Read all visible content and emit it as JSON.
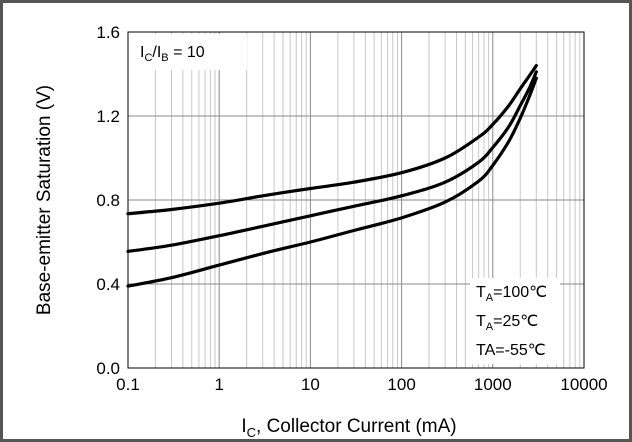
{
  "chart_data": {
    "type": "line",
    "x_scale": "log",
    "xlim": [
      0.1,
      10000
    ],
    "ylim": [
      0.0,
      1.6
    ],
    "grid": true,
    "x_ticks": [
      "0.1",
      "1",
      "10",
      "100",
      "1000",
      "10000"
    ],
    "y_ticks": [
      "0.0",
      "0.4",
      "0.8",
      "1.2",
      "1.6"
    ],
    "xlabel": {
      "main": "I",
      "sub": "C",
      "rest": ", Collector Current (mA)"
    },
    "ylabel": "Base-emitter  Saturation (V)",
    "condition": {
      "a": "I",
      "a_sub": "C",
      "slash": "/I",
      "b_sub": "B",
      "rest": " = 10"
    },
    "legend_labels": [
      {
        "main": "T",
        "sub": "A",
        "rest": "=100℃"
      },
      {
        "main": "T",
        "sub": "A",
        "rest": "=25℃"
      },
      {
        "main": "TA",
        "sub": "",
        "rest": "=-55℃"
      }
    ],
    "legend_placement": "bottom-right inside plot",
    "line_color": "#000000",
    "series": [
      {
        "x": [
          0.1,
          0.3,
          1,
          3,
          10,
          30,
          100,
          300,
          700,
          1000,
          1500,
          2000,
          2500,
          3000
        ],
        "y": [
          0.735,
          0.755,
          0.785,
          0.82,
          0.855,
          0.885,
          0.93,
          1.0,
          1.1,
          1.16,
          1.25,
          1.33,
          1.39,
          1.44
        ]
      },
      {
        "x": [
          0.1,
          0.3,
          1,
          3,
          10,
          30,
          100,
          300,
          700,
          1000,
          1500,
          2000,
          2500,
          3000
        ],
        "y": [
          0.555,
          0.585,
          0.63,
          0.675,
          0.725,
          0.77,
          0.82,
          0.885,
          0.98,
          1.05,
          1.15,
          1.25,
          1.33,
          1.41
        ]
      },
      {
        "x": [
          0.1,
          0.3,
          1,
          3,
          10,
          30,
          100,
          300,
          700,
          1000,
          1500,
          2000,
          2500,
          3000
        ],
        "y": [
          0.39,
          0.43,
          0.49,
          0.545,
          0.6,
          0.655,
          0.715,
          0.79,
          0.89,
          0.965,
          1.08,
          1.19,
          1.29,
          1.38
        ]
      }
    ]
  }
}
